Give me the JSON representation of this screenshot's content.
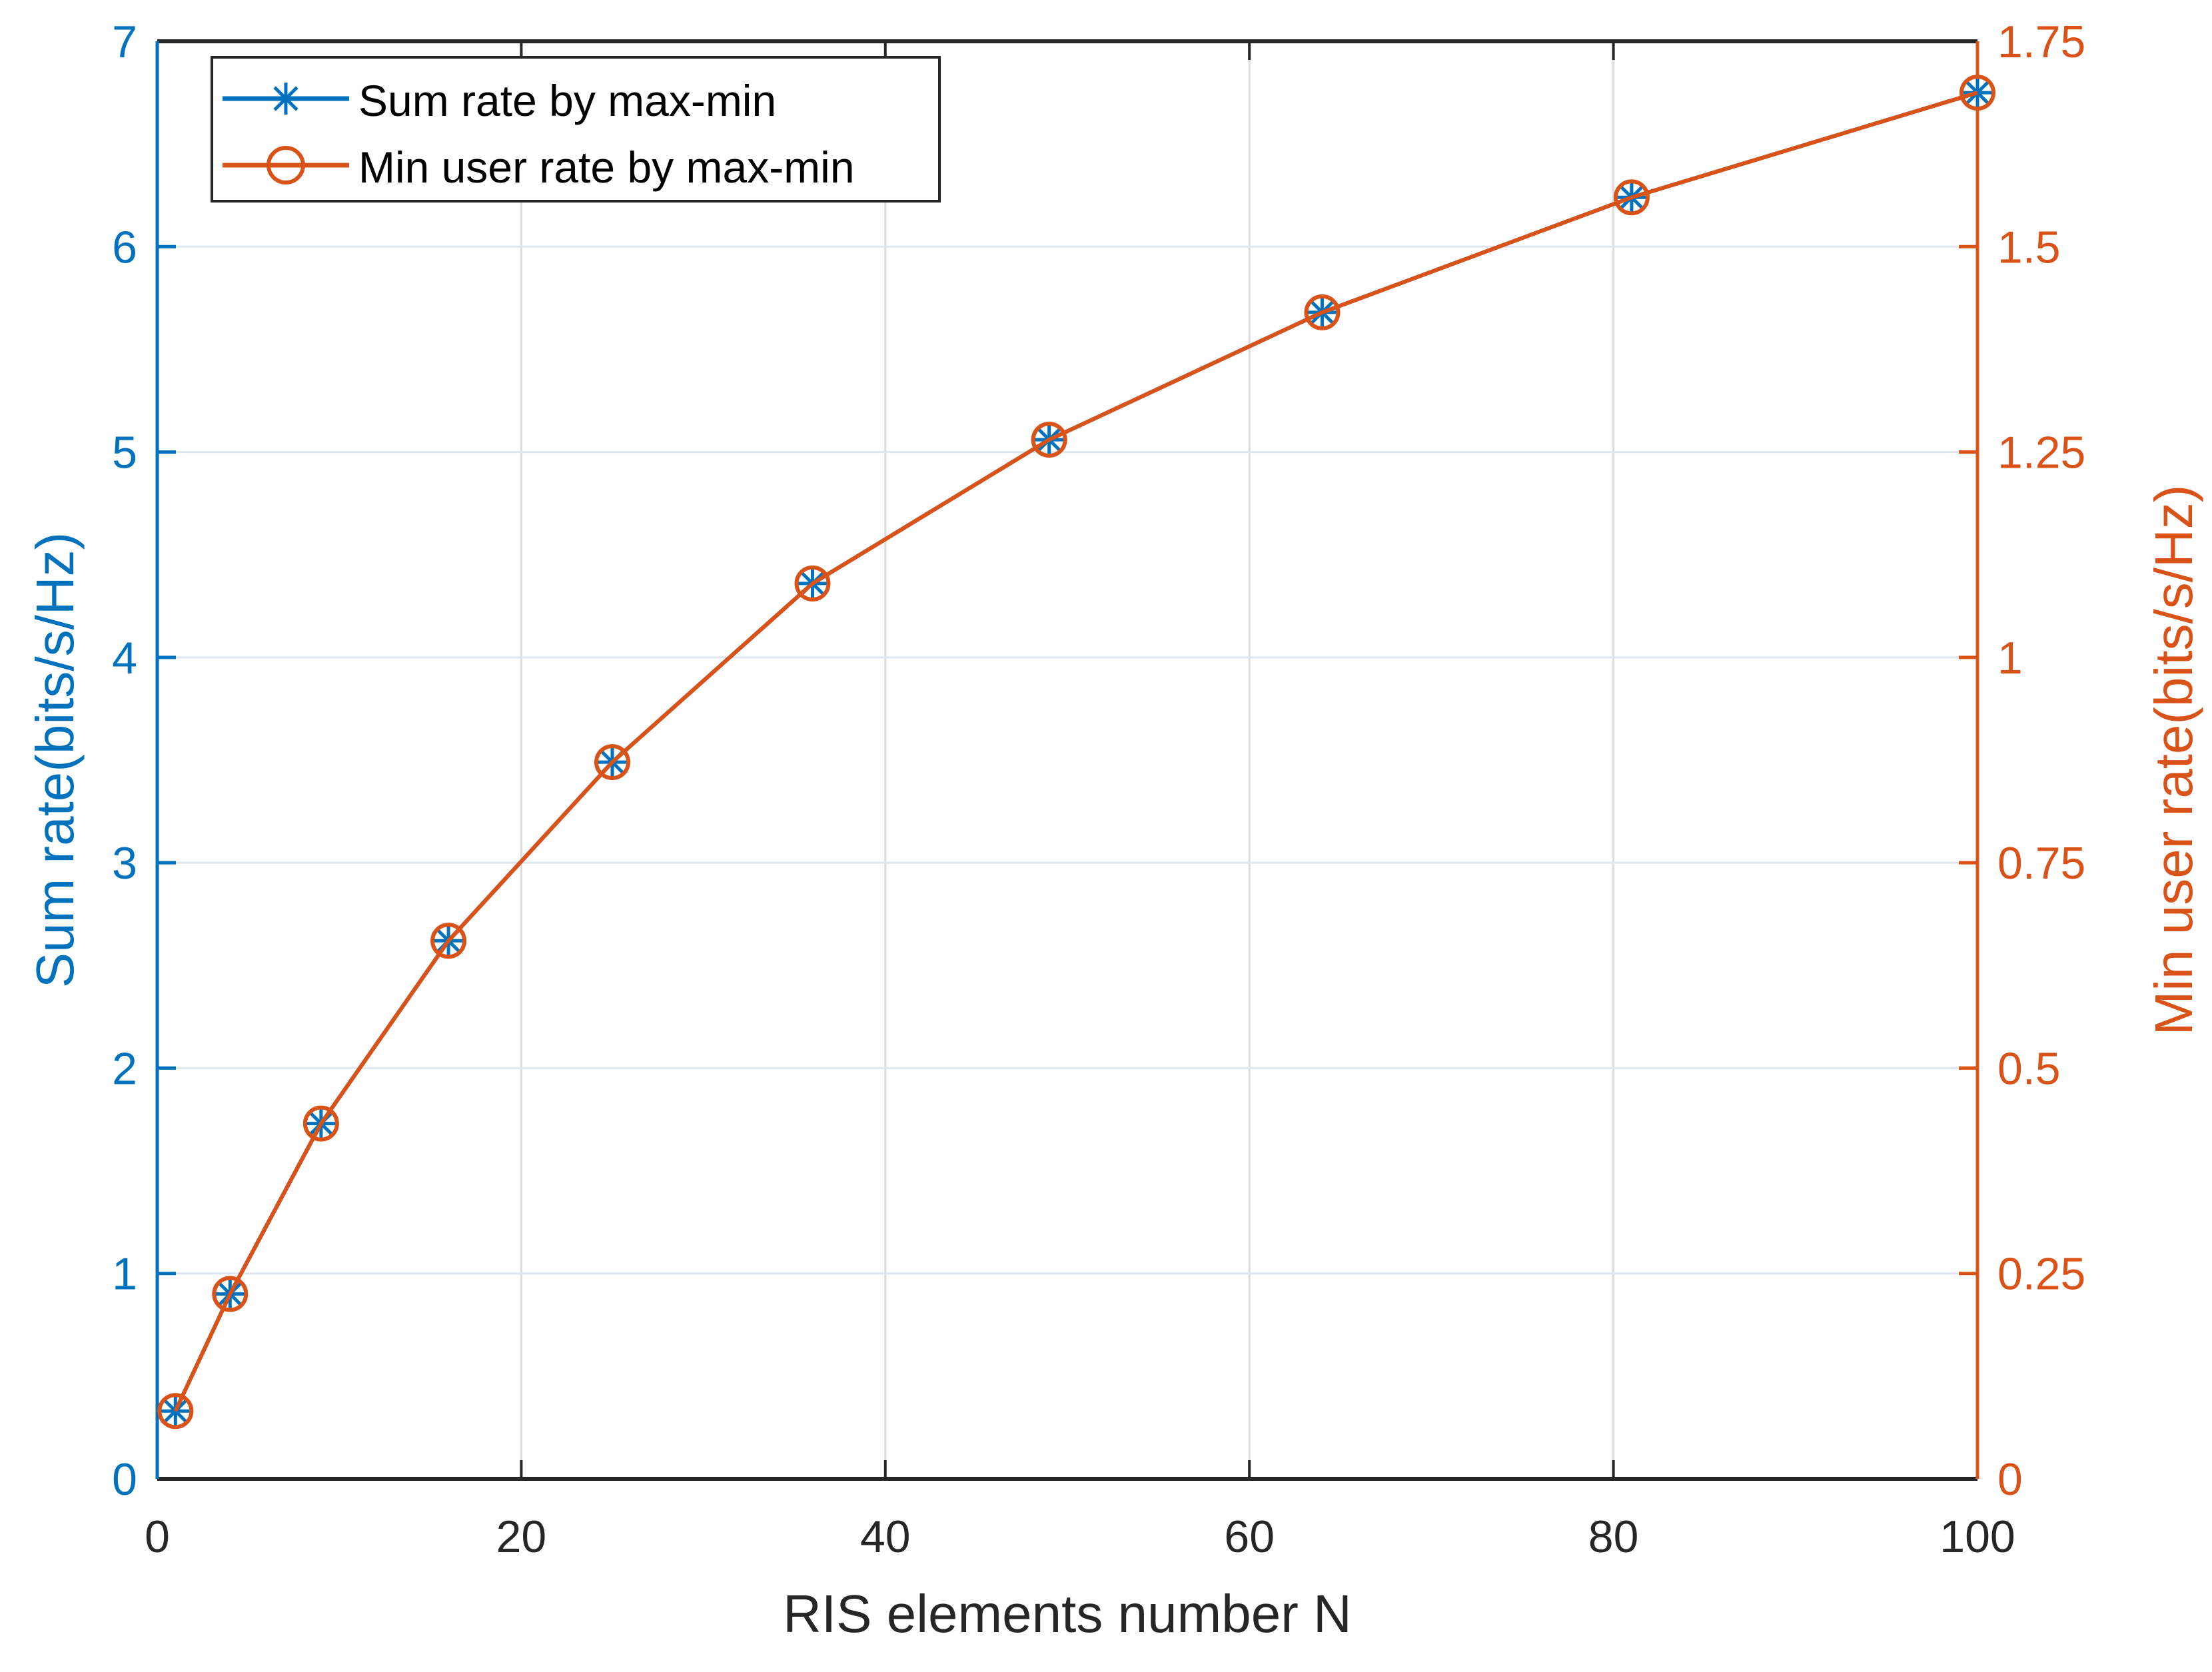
{
  "chart_data": {
    "type": "line",
    "title": "",
    "xlabel": "RIS elements number N",
    "ylabel_left": "Sum rate(bits/s/Hz)",
    "ylabel_right": "Min user rate(bits/s/Hz)",
    "xlim": [
      0,
      100
    ],
    "ylim_left": [
      0,
      7
    ],
    "ylim_right": [
      0,
      1.75
    ],
    "xticks": [
      "0",
      "20",
      "40",
      "60",
      "80",
      "100"
    ],
    "yticks_left": [
      "0",
      "1",
      "2",
      "3",
      "4",
      "5",
      "6",
      "7"
    ],
    "yticks_right": [
      "0",
      "0.25",
      "0.5",
      "0.75",
      "1",
      "1.25",
      "1.5",
      "1.75"
    ],
    "grid": true,
    "legend_placement": "top-left",
    "x": [
      1,
      4,
      9,
      16,
      25,
      36,
      49,
      64,
      81,
      100
    ],
    "series": [
      {
        "name": "Sum rate by max-min",
        "axis": "left",
        "marker": "asterisk",
        "color": "#0072BD",
        "values": [
          0.33,
          0.9,
          1.73,
          2.62,
          3.49,
          4.36,
          5.06,
          5.68,
          6.24,
          6.75
        ]
      },
      {
        "name": "Min user rate by max-min",
        "axis": "right",
        "marker": "circle",
        "color": "#D95319",
        "values": [
          0.0825,
          0.225,
          0.4325,
          0.655,
          0.8725,
          1.09,
          1.265,
          1.42,
          1.56,
          1.6875
        ]
      }
    ],
    "colors": {
      "left_axis": "#0072BD",
      "right_axis": "#D95319",
      "grid": "#dfe6ee"
    }
  }
}
